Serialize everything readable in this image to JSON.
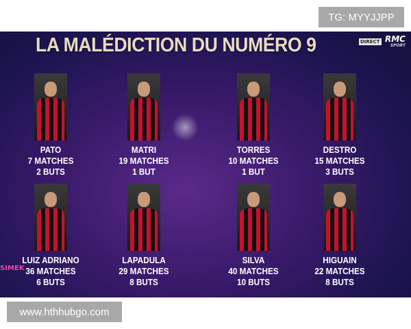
{
  "watermarks": {
    "top": "TG: MYYJJPP",
    "bottom": "www.hthhubgo.com"
  },
  "graphic": {
    "title": "LA MALÉDICTION DU NUMÉRO 9",
    "badge": "DIRECT",
    "channel": "RMC",
    "channel_sub": "SPORT",
    "corner_logo": "SIMEK",
    "players": [
      {
        "name": "PATO",
        "matches": "7 MATCHES",
        "goals": "2 BUTS"
      },
      {
        "name": "MATRI",
        "matches": "19 MATCHES",
        "goals": "1 BUT"
      },
      {
        "name": "TORRES",
        "matches": "10 MATCHES",
        "goals": "1 BUT"
      },
      {
        "name": "DESTRO",
        "matches": "15 MATCHES",
        "goals": "3 BUTS"
      },
      {
        "name": "LUIZ ADRIANO",
        "matches": "36 MATCHES",
        "goals": "6 BUTS"
      },
      {
        "name": "LAPADULA",
        "matches": "29 MATCHES",
        "goals": "8 BUTS"
      },
      {
        "name": "SILVA",
        "matches": "40 MATCHES",
        "goals": "10 BUTS"
      },
      {
        "name": "HIGUAIN",
        "matches": "22 MATCHES",
        "goals": "8 BUTS"
      }
    ]
  }
}
